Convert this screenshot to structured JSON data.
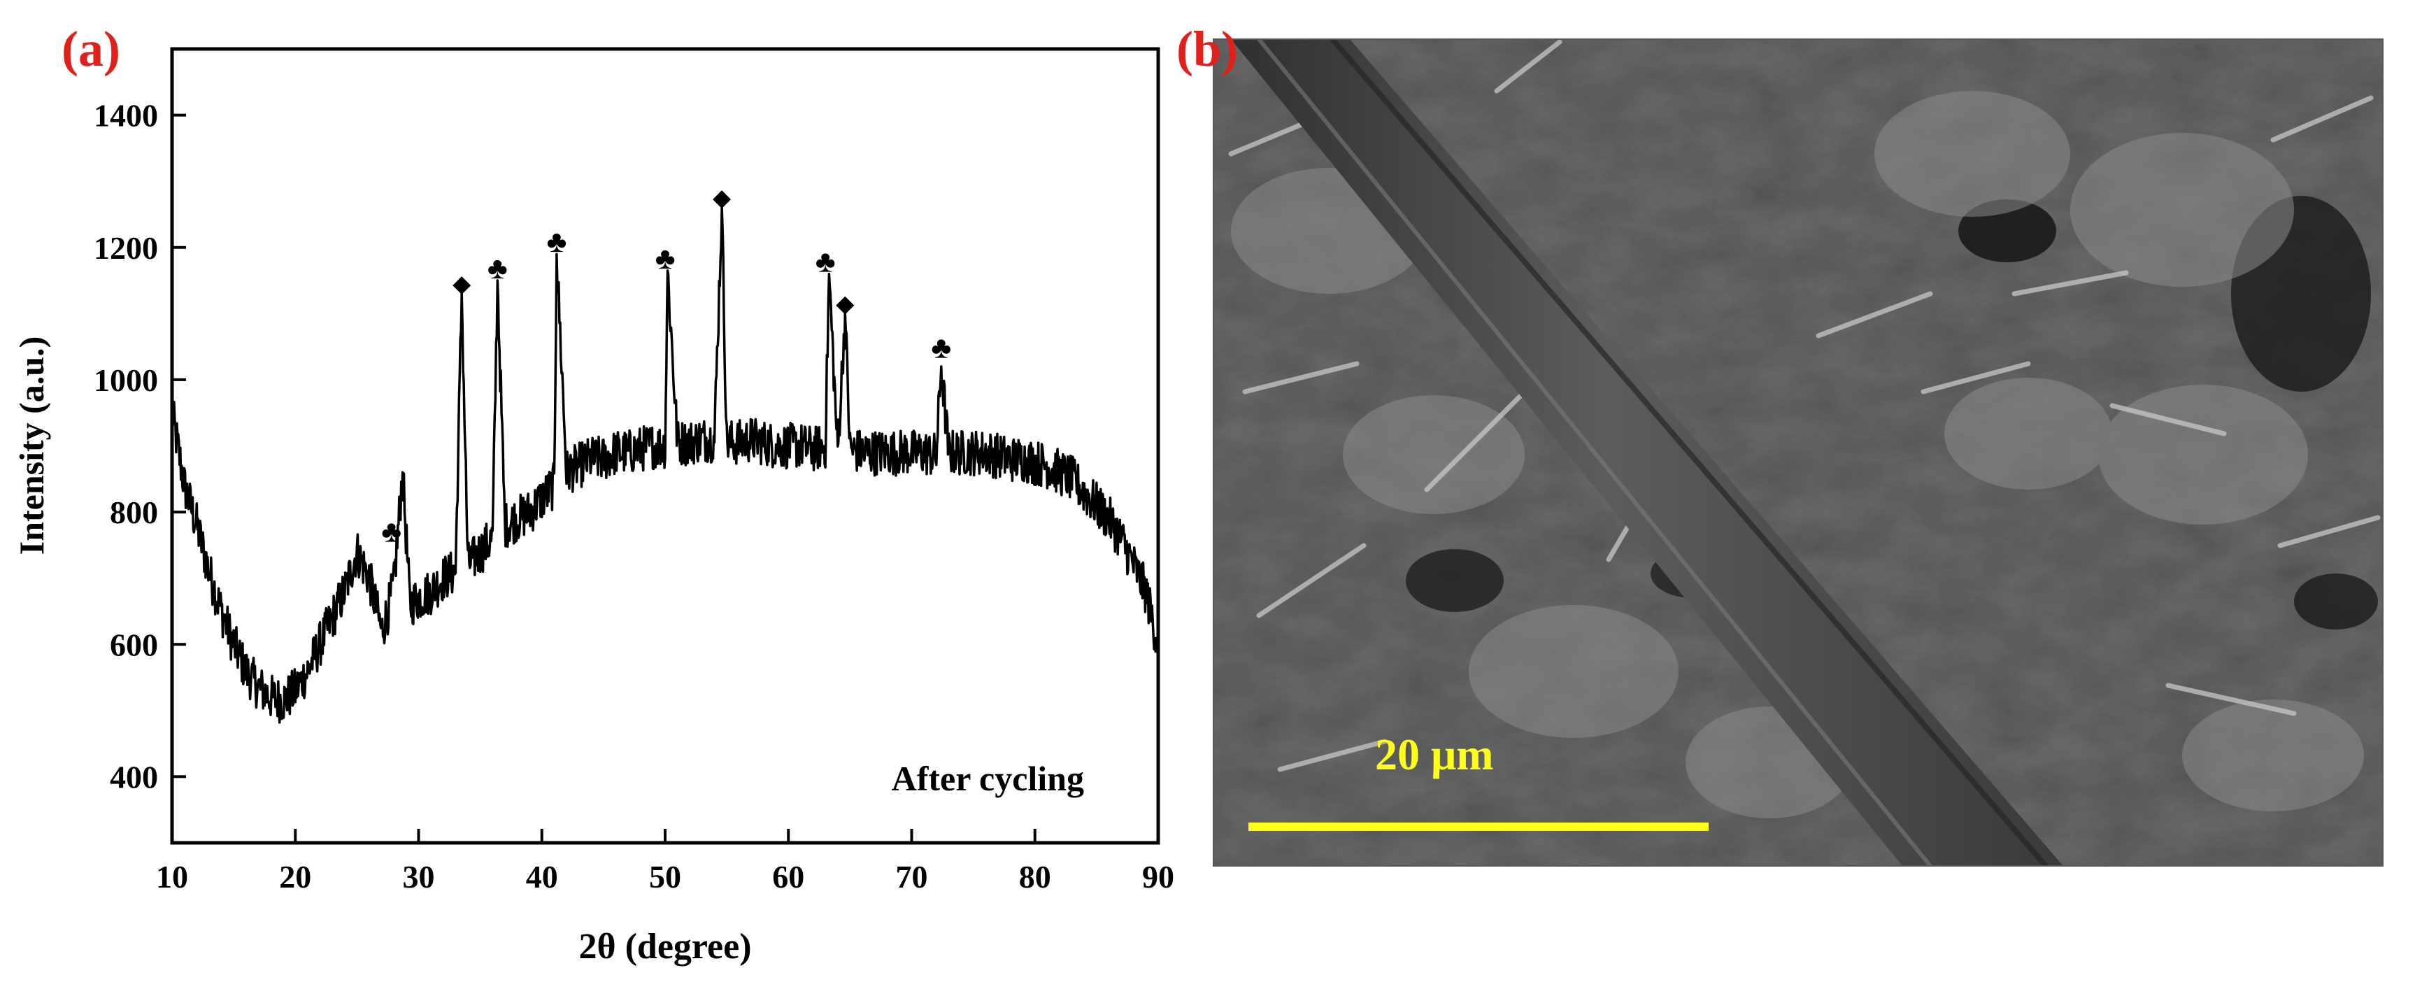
{
  "chart_data": [
    {
      "panel_label": "(a)",
      "type": "line",
      "xlabel": "2θ (degree)",
      "ylabel": "Intensity (a.u.)",
      "xlim": [
        10,
        90
      ],
      "ylim": [
        300,
        1500
      ],
      "x_ticks": [
        10,
        20,
        30,
        40,
        50,
        60,
        70,
        80,
        90
      ],
      "y_ticks": [
        400,
        600,
        800,
        1000,
        1200,
        1400
      ],
      "grid": false,
      "annotation": "After cycling",
      "series": [
        {
          "name": "After cycling",
          "x": [
            10,
            11,
            12,
            13,
            14,
            15,
            16,
            17,
            18,
            19,
            20,
            21,
            22,
            23,
            24,
            25,
            26,
            27,
            27.5,
            28,
            28.7,
            29.3,
            30,
            31,
            32,
            33,
            33.5,
            34,
            35,
            36,
            36.4,
            37,
            38,
            39,
            40,
            41,
            41.2,
            42,
            43,
            44,
            45,
            46,
            47,
            48,
            49,
            50,
            50.2,
            51,
            52,
            53,
            54,
            54.6,
            55,
            56,
            57,
            58,
            59,
            60,
            61,
            62,
            63,
            63.3,
            64,
            64.6,
            65,
            66,
            67,
            68,
            69,
            70,
            71,
            72,
            72.4,
            73,
            74,
            75,
            76,
            77,
            78,
            79,
            80,
            81,
            82,
            83,
            84,
            85,
            86,
            87,
            88,
            89,
            90
          ],
          "y": [
            950,
            840,
            780,
            710,
            650,
            600,
            560,
            535,
            520,
            515,
            530,
            560,
            600,
            640,
            680,
            740,
            700,
            620,
            650,
            690,
            860,
            660,
            670,
            680,
            700,
            710,
            1130,
            720,
            740,
            760,
            1150,
            780,
            790,
            800,
            820,
            840,
            1190,
            860,
            870,
            880,
            880,
            890,
            890,
            895,
            900,
            900,
            1165,
            905,
            905,
            910,
            910,
            1260,
            905,
            905,
            910,
            905,
            900,
            900,
            900,
            895,
            900,
            1160,
            890,
            1100,
            895,
            890,
            890,
            890,
            890,
            890,
            890,
            885,
            1020,
            890,
            890,
            890,
            890,
            885,
            880,
            880,
            875,
            870,
            860,
            850,
            830,
            810,
            790,
            760,
            720,
            680,
            600
          ]
        }
      ],
      "peak_markers": [
        {
          "x": 27.8,
          "y": 770,
          "symbol": "♣"
        },
        {
          "x": 33.5,
          "y": 1148,
          "symbol": "◆"
        },
        {
          "x": 36.4,
          "y": 1168,
          "symbol": "♣"
        },
        {
          "x": 41.2,
          "y": 1208,
          "symbol": "♣"
        },
        {
          "x": 50.0,
          "y": 1183,
          "symbol": "♣"
        },
        {
          "x": 54.6,
          "y": 1278,
          "symbol": "◆"
        },
        {
          "x": 63.0,
          "y": 1178,
          "symbol": "♣"
        },
        {
          "x": 64.6,
          "y": 1118,
          "symbol": "◆"
        },
        {
          "x": 72.4,
          "y": 1048,
          "symbol": "♣"
        }
      ]
    }
  ],
  "sem_panel": {
    "panel_label": "(b)",
    "scale_bar_label": "20 μm"
  },
  "colors": {
    "panel_label": "#e0201b",
    "scale_bar": "#ffff1a",
    "trace": "#000000",
    "sem_base": "#4a4a4a"
  }
}
